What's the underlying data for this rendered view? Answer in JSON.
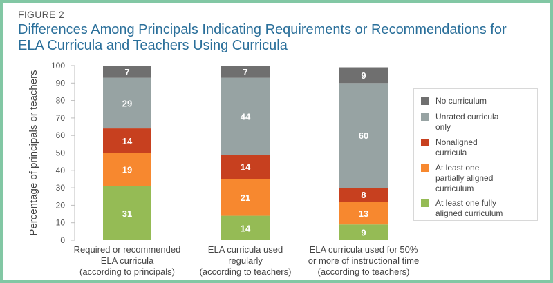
{
  "figure_label": "FIGURE 2",
  "chart_data": {
    "type": "bar",
    "stacked": true,
    "title": "Differences Among Principals Indicating Requirements or Recommendations for ELA Curricula and Teachers Using Curricula",
    "ylabel": "Percentage of principals or teachers",
    "ylim": [
      0,
      100
    ],
    "yticks": [
      "0",
      "10",
      "20",
      "30",
      "40",
      "50",
      "60",
      "70",
      "80",
      "90",
      "100"
    ],
    "grid": false,
    "legend_position": "right",
    "categories": [
      [
        "Required or recommended",
        "ELA curricula",
        "(according to principals)"
      ],
      [
        "ELA curricula used",
        "regularly",
        "(according to teachers)"
      ],
      [
        "ELA curricula used for 50%",
        "or more of instructional time",
        "(according to teachers)"
      ]
    ],
    "series": [
      {
        "name": "At least one fully aligned curriculum",
        "color": "#95bb55",
        "values": [
          31,
          14,
          9
        ]
      },
      {
        "name": "At least one partially aligned curriculum",
        "color": "#f7882f",
        "values": [
          19,
          21,
          13
        ]
      },
      {
        "name": "Nonaligned curricula",
        "color": "#c7401f",
        "values": [
          14,
          14,
          8
        ]
      },
      {
        "name": "Unrated curricula only",
        "color": "#97a3a3",
        "values": [
          29,
          44,
          60
        ]
      },
      {
        "name": "No curriculum",
        "color": "#6f6f6f",
        "values": [
          7,
          7,
          9
        ]
      }
    ],
    "legend": [
      {
        "color": "#6f6f6f",
        "lines": [
          "No curriculum"
        ]
      },
      {
        "color": "#97a3a3",
        "lines": [
          "Unrated curricula",
          "only"
        ]
      },
      {
        "color": "#c7401f",
        "lines": [
          "Nonaligned",
          "curricula"
        ]
      },
      {
        "color": "#f7882f",
        "lines": [
          "At least one",
          "partially aligned",
          "curriculum"
        ]
      },
      {
        "color": "#95bb55",
        "lines": [
          "At least one fully",
          "aligned curriculum"
        ]
      }
    ]
  }
}
